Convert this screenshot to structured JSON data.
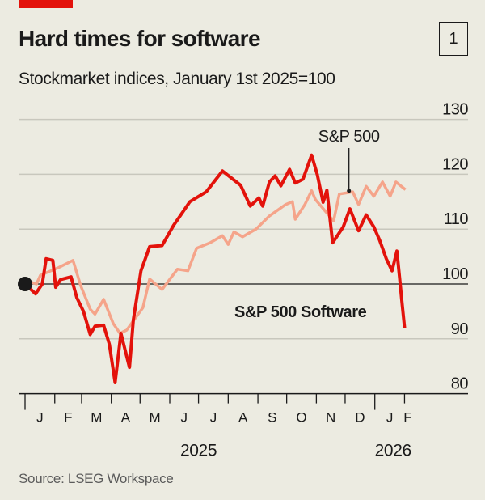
{
  "header": {
    "title": "Hard times for software",
    "subtitle": "Stockmarket indices, January 1st 2025=100",
    "chart_number": "1"
  },
  "footer": {
    "source": "Source: LSEG Workspace"
  },
  "colors": {
    "accent": "#e3120b",
    "software": "#e3120b",
    "sp500": "#f5a48a",
    "background": "#ecebe1",
    "grid": "#c8c7bd"
  },
  "chart_data": {
    "type": "line",
    "title": "Hard times for software",
    "subtitle": "Stockmarket indices, January 1st 2025=100",
    "ylim": [
      80,
      130
    ],
    "yticks": [
      80,
      90,
      100,
      110,
      120,
      130
    ],
    "ytick_labels": [
      "80",
      "90",
      "100",
      "110",
      "120",
      "130"
    ],
    "xlim": [
      "2025-01-01",
      "2026-02-05"
    ],
    "xtick_dates": [
      "2025-01-01",
      "2025-02-01",
      "2025-03-01",
      "2025-04-01",
      "2025-05-01",
      "2025-06-01",
      "2025-07-01",
      "2025-08-01",
      "2025-09-01",
      "2025-10-01",
      "2025-11-01",
      "2025-12-01",
      "2026-01-01",
      "2026-02-01"
    ],
    "month_labels": [
      "J",
      "F",
      "M",
      "A",
      "M",
      "J",
      "J",
      "A",
      "S",
      "O",
      "N",
      "D",
      "J",
      "F"
    ],
    "year_labels": [
      "2025",
      "2026"
    ],
    "grid": true,
    "baseline": 100,
    "series": [
      {
        "name": "S&P 500",
        "points": [
          [
            "2025-01-01",
            100
          ],
          [
            "2025-01-04",
            100.5
          ],
          [
            "2025-01-13",
            100
          ],
          [
            "2025-01-17",
            101.6
          ],
          [
            "2025-02-05",
            103
          ],
          [
            "2025-02-20",
            104.3
          ],
          [
            "2025-02-28",
            99.7
          ],
          [
            "2025-03-10",
            95.4
          ],
          [
            "2025-03-15",
            94.5
          ],
          [
            "2025-03-24",
            97.2
          ],
          [
            "2025-04-03",
            92.8
          ],
          [
            "2025-04-10",
            91
          ],
          [
            "2025-04-17",
            91.6
          ],
          [
            "2025-05-04",
            95.7
          ],
          [
            "2025-05-11",
            100.9
          ],
          [
            "2025-05-24",
            99
          ],
          [
            "2025-06-09",
            102.7
          ],
          [
            "2025-06-20",
            102.4
          ],
          [
            "2025-06-29",
            106.5
          ],
          [
            "2025-07-13",
            107.5
          ],
          [
            "2025-07-26",
            108.8
          ],
          [
            "2025-08-01",
            107.2
          ],
          [
            "2025-08-07",
            109.5
          ],
          [
            "2025-08-16",
            108.6
          ],
          [
            "2025-08-30",
            110
          ],
          [
            "2025-09-13",
            112.4
          ],
          [
            "2025-09-30",
            114.5
          ],
          [
            "2025-10-07",
            115
          ],
          [
            "2025-10-10",
            111.8
          ],
          [
            "2025-10-20",
            114.5
          ],
          [
            "2025-10-27",
            117
          ],
          [
            "2025-10-31",
            115.4
          ],
          [
            "2025-11-19",
            111.5
          ],
          [
            "2025-11-25",
            116.4
          ],
          [
            "2025-12-09",
            116.8
          ],
          [
            "2025-12-15",
            114.5
          ],
          [
            "2025-12-23",
            117.8
          ],
          [
            "2025-12-31",
            116
          ],
          [
            "2026-01-09",
            118.6
          ],
          [
            "2026-01-17",
            116
          ],
          [
            "2026-01-23",
            118.6
          ],
          [
            "2026-02-02",
            117.2
          ]
        ]
      },
      {
        "name": "S&P 500 Software",
        "points": [
          [
            "2025-01-01",
            100
          ],
          [
            "2025-01-12",
            98.2
          ],
          [
            "2025-01-19",
            100
          ],
          [
            "2025-01-23",
            104.6
          ],
          [
            "2025-01-30",
            104.3
          ],
          [
            "2025-02-02",
            99.4
          ],
          [
            "2025-02-07",
            100.8
          ],
          [
            "2025-02-18",
            101.3
          ],
          [
            "2025-02-24",
            97.5
          ],
          [
            "2025-03-03",
            95
          ],
          [
            "2025-03-10",
            90.8
          ],
          [
            "2025-03-15",
            92.3
          ],
          [
            "2025-03-24",
            92.5
          ],
          [
            "2025-03-30",
            89
          ],
          [
            "2025-04-05",
            82
          ],
          [
            "2025-04-11",
            91
          ],
          [
            "2025-04-20",
            84.8
          ],
          [
            "2025-04-24",
            93.5
          ],
          [
            "2025-05-02",
            102.4
          ],
          [
            "2025-05-11",
            106.8
          ],
          [
            "2025-05-24",
            107
          ],
          [
            "2025-06-05",
            110.7
          ],
          [
            "2025-06-22",
            115
          ],
          [
            "2025-07-09",
            116.8
          ],
          [
            "2025-07-26",
            120.6
          ],
          [
            "2025-08-14",
            118
          ],
          [
            "2025-08-24",
            114.2
          ],
          [
            "2025-09-02",
            115.7
          ],
          [
            "2025-09-06",
            114.2
          ],
          [
            "2025-09-13",
            118.6
          ],
          [
            "2025-09-19",
            119.7
          ],
          [
            "2025-09-25",
            117.9
          ],
          [
            "2025-10-04",
            120.9
          ],
          [
            "2025-10-10",
            118.4
          ],
          [
            "2025-10-18",
            119.1
          ],
          [
            "2025-10-27",
            123.5
          ],
          [
            "2025-11-02",
            119.9
          ],
          [
            "2025-11-08",
            114.9
          ],
          [
            "2025-11-12",
            117.1
          ],
          [
            "2025-11-18",
            107.5
          ],
          [
            "2025-11-29",
            110.4
          ],
          [
            "2025-12-06",
            113.7
          ],
          [
            "2025-12-15",
            109.7
          ],
          [
            "2025-12-23",
            112.6
          ],
          [
            "2025-12-31",
            110.4
          ],
          [
            "2026-01-06",
            108
          ],
          [
            "2026-01-13",
            104.6
          ],
          [
            "2026-01-19",
            102.4
          ],
          [
            "2026-01-24",
            106
          ],
          [
            "2026-01-27",
            100.9
          ],
          [
            "2026-01-29",
            97.2
          ],
          [
            "2026-02-01",
            92
          ]
        ]
      }
    ],
    "annotations": [
      {
        "text": "S&P 500",
        "series": "S&P 500",
        "pointer_date": "2025-12-05"
      },
      {
        "text": "S&P 500 Software",
        "series": "S&P 500 Software"
      }
    ]
  }
}
